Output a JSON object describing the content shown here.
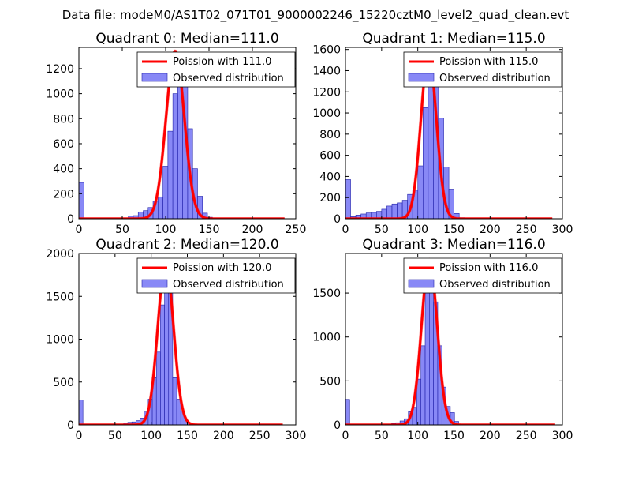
{
  "figure_title": "Data file: modeM0/AS1T02_071T01_9000002246_15220cztM0_level2_quad_clean.evt",
  "colors": {
    "bar_fill": "#7b7bf5",
    "bar_edge": "#2222aa",
    "fit_line": "#ff0000",
    "frame": "#000000",
    "background": "#ffffff"
  },
  "chart_data": [
    {
      "type": "bar",
      "title": "Quadrant 0: Median=111.0",
      "legend": [
        "Poission with 111.0",
        "Observed distribution"
      ],
      "legend_loc": "upper-right",
      "xlim": [
        0,
        250
      ],
      "ylim": [
        0,
        1370
      ],
      "xticks": [
        0,
        50,
        100,
        150,
        200,
        250
      ],
      "yticks": [
        0,
        200,
        400,
        600,
        800,
        1000,
        1200
      ],
      "bin_width": 5.7,
      "bins": [
        [
          0,
          290
        ],
        [
          57,
          20
        ],
        [
          62.7,
          25
        ],
        [
          68.4,
          55
        ],
        [
          74.1,
          65
        ],
        [
          79.8,
          90
        ],
        [
          85.5,
          140
        ],
        [
          91.2,
          175
        ],
        [
          96.9,
          420
        ],
        [
          102.6,
          700
        ],
        [
          108.3,
          1000
        ],
        [
          114,
          1160
        ],
        [
          119.7,
          1100
        ],
        [
          125.4,
          720
        ],
        [
          131.1,
          400
        ],
        [
          136.8,
          180
        ],
        [
          142.5,
          45
        ],
        [
          148.2,
          12
        ]
      ],
      "fit": {
        "median": 111.0,
        "x_start": 0,
        "x_end": 237,
        "amplitude": 1340
      }
    },
    {
      "type": "bar",
      "title": "Quadrant 1: Median=115.0",
      "legend": [
        "Poission with 115.0",
        "Observed distribution"
      ],
      "legend_loc": "upper-right",
      "xlim": [
        0,
        300
      ],
      "ylim": [
        0,
        1620
      ],
      "xticks": [
        0,
        50,
        100,
        150,
        200,
        250,
        300
      ],
      "yticks": [
        0,
        200,
        400,
        600,
        800,
        1000,
        1200,
        1400,
        1600
      ],
      "bin_width": 7.15,
      "bins": [
        [
          0,
          370
        ],
        [
          7.15,
          20
        ],
        [
          14.3,
          35
        ],
        [
          21.45,
          45
        ],
        [
          28.6,
          55
        ],
        [
          35.75,
          60
        ],
        [
          42.9,
          70
        ],
        [
          50.05,
          90
        ],
        [
          57.2,
          120
        ],
        [
          64.35,
          140
        ],
        [
          71.5,
          150
        ],
        [
          78.65,
          175
        ],
        [
          85.8,
          230
        ],
        [
          92.95,
          270
        ],
        [
          100.1,
          500
        ],
        [
          107.25,
          1050
        ],
        [
          114.4,
          1400
        ],
        [
          121.55,
          1350
        ],
        [
          128.7,
          950
        ],
        [
          135.85,
          490
        ],
        [
          143,
          280
        ],
        [
          150.15,
          50
        ],
        [
          157.3,
          10
        ]
      ],
      "fit": {
        "median": 115.0,
        "x_start": 0,
        "x_end": 286,
        "amplitude": 1550
      }
    },
    {
      "type": "bar",
      "title": "Quadrant 2: Median=120.0",
      "legend": [
        "Poission with 120.0",
        "Observed distribution"
      ],
      "legend_loc": "upper-right",
      "xlim": [
        0,
        300
      ],
      "ylim": [
        0,
        2000
      ],
      "xticks": [
        0,
        50,
        100,
        150,
        200,
        250,
        300
      ],
      "yticks": [
        0,
        500,
        1000,
        1500,
        2000
      ],
      "bin_width": 5.64,
      "bins": [
        [
          0,
          290
        ],
        [
          62.04,
          20
        ],
        [
          67.68,
          30
        ],
        [
          73.32,
          35
        ],
        [
          78.96,
          50
        ],
        [
          84.6,
          80
        ],
        [
          90.24,
          150
        ],
        [
          95.88,
          300
        ],
        [
          101.52,
          550
        ],
        [
          107.16,
          850
        ],
        [
          112.8,
          1400
        ],
        [
          118.44,
          1700
        ],
        [
          124.08,
          1550
        ],
        [
          129.72,
          550
        ],
        [
          135.36,
          300
        ],
        [
          141,
          160
        ],
        [
          146.64,
          50
        ],
        [
          152.28,
          15
        ]
      ],
      "fit": {
        "median": 120.0,
        "x_start": 0,
        "x_end": 282,
        "amplitude": 1880
      }
    },
    {
      "type": "bar",
      "title": "Quadrant 3: Median=116.0",
      "legend": [
        "Poission with 116.0",
        "Observed distribution"
      ],
      "legend_loc": "upper-right",
      "xlim": [
        0,
        300
      ],
      "ylim": [
        0,
        1950
      ],
      "xticks": [
        0,
        50,
        100,
        150,
        200,
        250,
        300
      ],
      "yticks": [
        0,
        500,
        1000,
        1500
      ],
      "bin_width": 5.8,
      "bins": [
        [
          0,
          290
        ],
        [
          63.8,
          15
        ],
        [
          69.6,
          25
        ],
        [
          75.4,
          45
        ],
        [
          81.2,
          70
        ],
        [
          87,
          150
        ],
        [
          92.8,
          200
        ],
        [
          98.6,
          520
        ],
        [
          104.4,
          900
        ],
        [
          110.2,
          1500
        ],
        [
          116,
          1750
        ],
        [
          121.8,
          1400
        ],
        [
          127.6,
          900
        ],
        [
          133.4,
          430
        ],
        [
          139.2,
          210
        ],
        [
          145,
          140
        ],
        [
          150.8,
          40
        ],
        [
          156.6,
          10
        ]
      ],
      "fit": {
        "median": 116.0,
        "x_start": 0,
        "x_end": 290,
        "amplitude": 1880
      }
    }
  ]
}
